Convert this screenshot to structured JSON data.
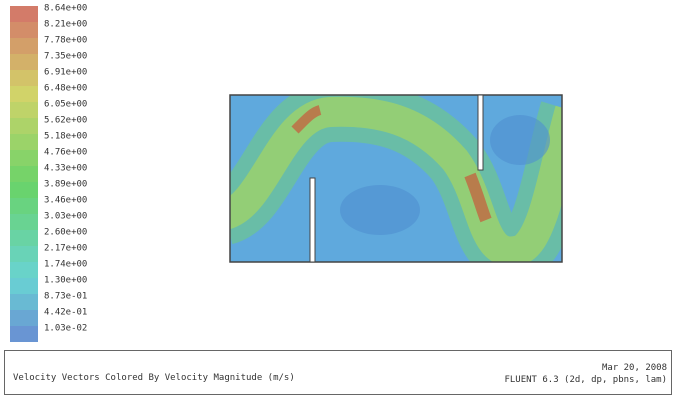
{
  "colorbar": {
    "labels": [
      "8.64e+00",
      "8.21e+00",
      "7.78e+00",
      "7.35e+00",
      "6.91e+00",
      "6.48e+00",
      "6.05e+00",
      "5.62e+00",
      "5.18e+00",
      "4.76e+00",
      "4.33e+00",
      "3.89e+00",
      "3.46e+00",
      "3.03e+00",
      "2.60e+00",
      "2.17e+00",
      "1.74e+00",
      "1.30e+00",
      "8.73e-01",
      "4.42e-01",
      "1.03e-02"
    ]
  },
  "footer": {
    "caption": "Velocity Vectors Colored By Velocity Magnitude (m/s)",
    "date": "Mar 20, 2008",
    "version": "FLUENT 6.3 (2d, dp, pbns, lam)"
  }
}
